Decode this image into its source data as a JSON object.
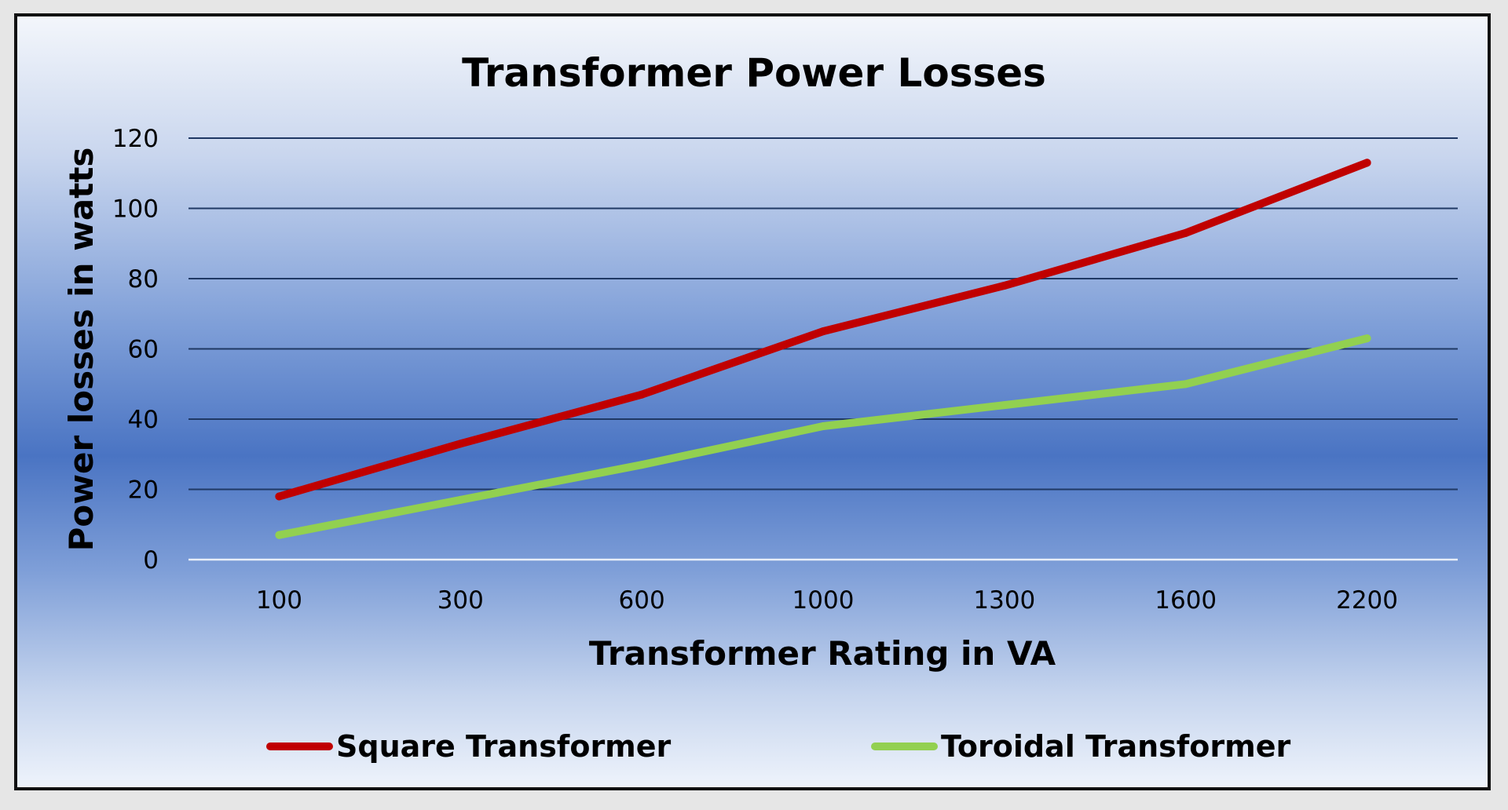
{
  "chart_data": {
    "type": "line",
    "title": "Transformer Power Losses",
    "xlabel": "Transformer Rating in VA",
    "ylabel": "Power losses in watts",
    "categories": [
      "100",
      "300",
      "600",
      "1000",
      "1300",
      "1600",
      "2200"
    ],
    "yticks": [
      "0",
      "20",
      "40",
      "60",
      "80",
      "100",
      "120"
    ],
    "ylim": [
      0,
      120
    ],
    "grid": true,
    "legend_position": "bottom",
    "series": [
      {
        "name": "Square Transformer",
        "color": "#c00000",
        "values": [
          18,
          33,
          47,
          65,
          78,
          93,
          113
        ]
      },
      {
        "name": "Toroidal Transformer",
        "color": "#92d050",
        "values": [
          7,
          17,
          27,
          38,
          44,
          50,
          63
        ]
      }
    ],
    "colors": {
      "gridline": "#1f3864",
      "baseline": "#e8eef8"
    }
  }
}
